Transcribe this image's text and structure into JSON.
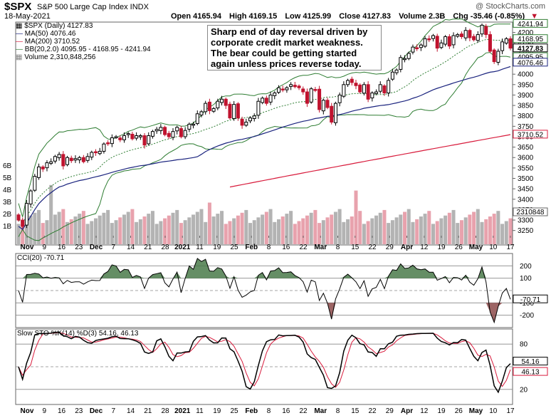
{
  "header": {
    "symbol": "$SPX",
    "name": "S&P 500 Large Cap Index INDX",
    "date": "18-May-2021",
    "watermark": "@ StockCharts.com",
    "open": "Open 4165.94",
    "high": "High 4169.15",
    "low": "Low 4125.99",
    "close": "Close 4127.83",
    "volume": "Volume 2.3B",
    "chg": "Chg -35.46 (-0.85%)",
    "chg_marker": "▼"
  },
  "legend": {
    "price": "$SPX (Daily) 4127.83",
    "ma50": "MA(50) 4076.46",
    "ma200": "MA(200) 3710.52",
    "bb": "BB(20,2.0) 4095.95 - 4168.95 - 4241.94",
    "volume": "Volume 2,310,848,256"
  },
  "annotation": "Sharp end of day reversal driven by corporate credit market weakness. The bear could be getting started again unless prices reverse today.",
  "cci_label": "CCI(20) -70.71",
  "sto_label": "Slow STO %K(14) %D(3) 54.16, 46.13",
  "price_badges": [
    "4241.94",
    "4168.95",
    "4127.83",
    "4095.95",
    "4076.46",
    "3710.52"
  ],
  "vol_badge": "2310848",
  "cci_badge": "-70.71",
  "sto_badges": [
    "54.16",
    "46.13"
  ],
  "vol_axis_labels": [
    "6B",
    "5B",
    "4B",
    "3B",
    "2B",
    "1B"
  ],
  "colors": {
    "up": "#000000",
    "down": "#c0132e",
    "ma50": "#1a237e",
    "ma200": "#d81b3c",
    "bb": "#2e7d32",
    "ma20": "#2e7d32",
    "vol_up": "#b3b3b3",
    "vol_down": "#e8a2ad",
    "cci_fill": "#4a7a4a",
    "cci_neg_fill": "#8c4a4a"
  },
  "chart_data": [
    {
      "type": "candlestick",
      "title": "$SPX (Daily)",
      "x_tick_labels": [
        "Nov",
        "9",
        "16",
        "23",
        "Dec",
        "7",
        "14",
        "21",
        "28",
        "2021",
        "11",
        "19",
        "25",
        "Feb",
        "8",
        "16",
        "22",
        "Mar",
        "8",
        "15",
        "22",
        "29",
        "Apr",
        "12",
        "19",
        "26",
        "May",
        "10",
        "17"
      ],
      "ylim": [
        3250,
        4250
      ],
      "y_ticks": [
        3250,
        3300,
        3350,
        3400,
        3450,
        3500,
        3550,
        3600,
        3650,
        3700,
        3750,
        3800,
        3850,
        3900,
        3950,
        4000,
        4050,
        4100,
        4150,
        4200
      ],
      "series": [
        {
          "name": "$SPX (Daily)",
          "close": [
            3300,
            3270,
            3380,
            3440,
            3510,
            3555,
            3545,
            3575,
            3580,
            3605,
            3615,
            3560,
            3600,
            3585,
            3595,
            3600,
            3580,
            3605,
            3625,
            3625,
            3630,
            3665,
            3670,
            3695,
            3700,
            3685,
            3705,
            3715,
            3690,
            3705,
            3705,
            3660,
            3705,
            3725,
            3735,
            3745,
            3710,
            3700,
            3725,
            3745,
            3700,
            3730,
            3760,
            3760,
            3810,
            3820,
            3860,
            3825,
            3835,
            3870,
            3880,
            3850,
            3790,
            3855,
            3790,
            3755,
            3770,
            3790,
            3800,
            3870,
            3885,
            3860,
            3900,
            3910,
            3935,
            3925,
            3935,
            3950,
            3940,
            3935,
            3915,
            3860,
            3930,
            3925,
            3830,
            3875,
            3840,
            3770,
            3860,
            3900,
            3950,
            3970,
            3960,
            3945,
            3915,
            3950,
            3880,
            3910,
            3915,
            3950,
            3910,
            3970,
            4010,
            4020,
            4080,
            4075,
            4100,
            4130,
            4125,
            4140,
            4170,
            4165,
            4185,
            4125,
            4150,
            4180,
            4135,
            4185,
            4190,
            4180,
            4210,
            4175,
            4165,
            4190,
            4235,
            4190,
            4110,
            4060,
            4110,
            4155,
            4170,
            4125
          ]
        },
        {
          "name": "MA(50)",
          "last": 4076.46
        },
        {
          "name": "MA(200)",
          "last": 3710.52
        },
        {
          "name": "BB(20,2.0)",
          "lower": 4095.95,
          "middle": 4168.95,
          "upper": 4241.94
        }
      ]
    },
    {
      "type": "bar",
      "title": "Volume",
      "y_tick_labels": [
        "6B",
        "5B",
        "4B",
        "3B",
        "2B",
        "1B"
      ],
      "last": 2310848256
    },
    {
      "type": "line",
      "title": "CCI(20)",
      "y_ticks": [
        200,
        100,
        -100,
        -200
      ],
      "last": -70.71
    },
    {
      "type": "line",
      "title": "Slow STO %K(14) %D(3)",
      "y_ticks": [
        80,
        50,
        20
      ],
      "series": [
        {
          "name": "%K",
          "last": 54.16
        },
        {
          "name": "%D",
          "last": 46.13
        }
      ]
    }
  ]
}
